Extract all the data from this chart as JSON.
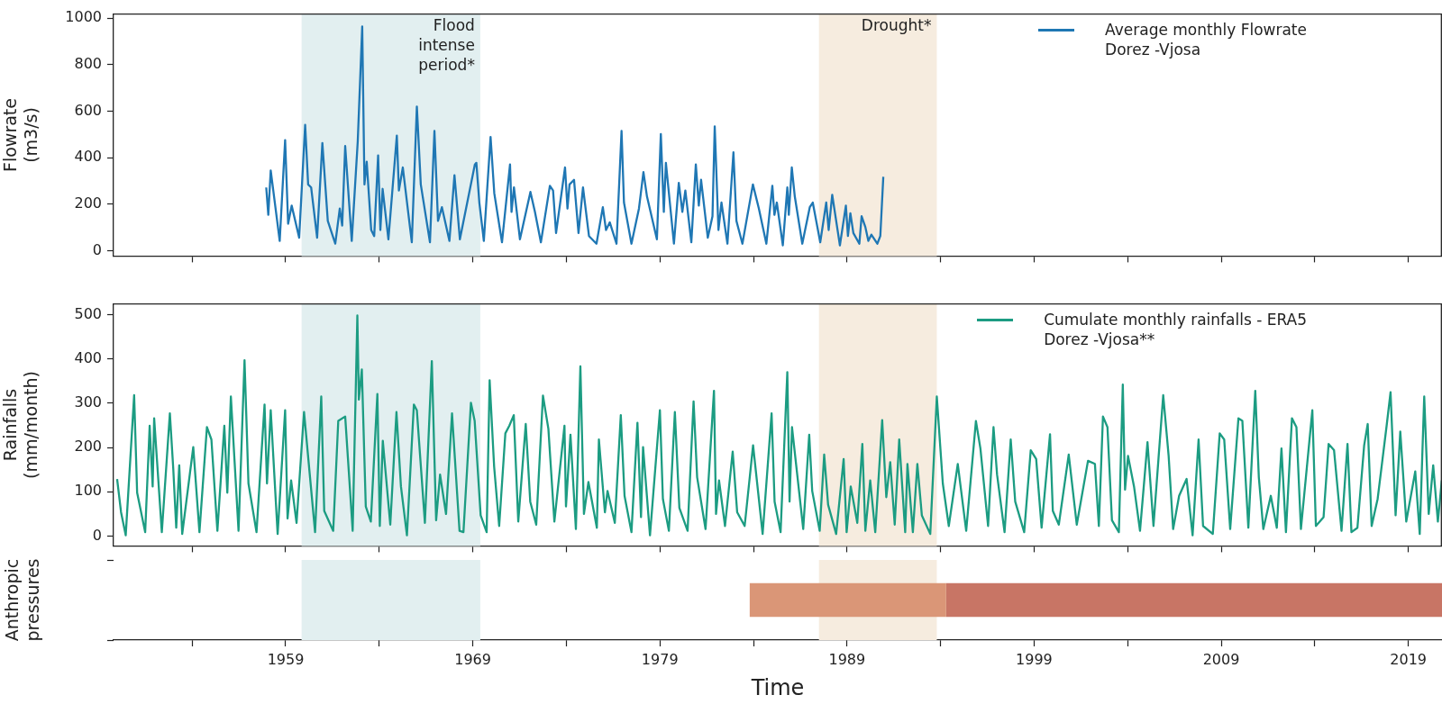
{
  "chart_data": [
    {
      "type": "line",
      "ylabel": "Flowrate\n(m3/s)",
      "legend": "top right",
      "grid": false,
      "tick_labels": "y",
      "xlim": [
        1949.8,
        2020.8
      ],
      "xticks": [
        {
          "value": 1954,
          "label": null
        },
        1959,
        {
          "value": 1964,
          "label": null
        },
        1969,
        {
          "value": 1974,
          "label": null
        },
        1979,
        {
          "value": 1984,
          "label": null
        },
        1989,
        {
          "value": 1994,
          "label": null
        },
        1999,
        {
          "value": 2004,
          "label": null
        },
        2009,
        {
          "value": 2014,
          "label": null
        },
        2019
      ],
      "ylim": [
        -23,
        1018
      ],
      "yticks": [
        0,
        200,
        400,
        600,
        800,
        1000
      ],
      "bands": [
        {
          "axis": "x",
          "from": 1959.85,
          "to": 1969.4,
          "label": "Flood\nintense\nperiod*",
          "color": "#e2eff0"
        },
        {
          "axis": "x",
          "from": 1987.5,
          "to": 1993.8,
          "label": "Drought*",
          "color": "#f6ecdf"
        }
      ],
      "x": [
        1957.96,
        1958.07,
        1958.2,
        1958.68,
        1958.97,
        1959.13,
        1959.32,
        1959.72,
        1960.04,
        1960.2,
        1960.36,
        1960.68,
        1960.96,
        1961.25,
        1961.65,
        1961.89,
        1962.02,
        1962.18,
        1962.53,
        1962.85,
        1963.09,
        1963.21,
        1963.33,
        1963.57,
        1963.73,
        1963.94,
        1964.06,
        1964.18,
        1964.49,
        1964.94,
        1965.05,
        1965.26,
        1965.74,
        1966.01,
        1966.22,
        1966.71,
        1966.95,
        1967.14,
        1967.35,
        1967.75,
        1968.02,
        1968.31,
        1969.11,
        1969.19,
        1969.35,
        1969.59,
        1969.95,
        1970.15,
        1970.56,
        1970.99,
        1971.07,
        1971.2,
        1971.52,
        1972.08,
        1972.32,
        1972.64,
        1973.12,
        1973.29,
        1973.45,
        1973.93,
        1974.06,
        1974.17,
        1974.41,
        1974.65,
        1974.89,
        1975.21,
        1975.61,
        1975.95,
        1976.12,
        1976.32,
        1976.68,
        1976.95,
        1977.08,
        1977.48,
        1977.88,
        1978.12,
        1978.31,
        1978.84,
        1979.05,
        1979.21,
        1979.32,
        1979.75,
        1980.01,
        1980.2,
        1980.36,
        1980.68,
        1980.92,
        1981.08,
        1981.2,
        1981.56,
        1981.81,
        1981.93,
        1982.13,
        1982.29,
        1982.61,
        1982.93,
        1983.09,
        1983.41,
        1983.97,
        1984.29,
        1984.69,
        1985.01,
        1985.12,
        1985.25,
        1985.57,
        1985.81,
        1985.89,
        1986.05,
        1986.21,
        1986.61,
        1987.01,
        1987.17,
        1987.57,
        1987.89,
        1988.02,
        1988.21,
        1988.62,
        1988.94,
        1989.05,
        1989.18,
        1989.34,
        1989.66,
        1989.78,
        1989.98,
        1990.14,
        1990.3,
        1990.62,
        1990.78,
        1990.94
      ],
      "series": [
        {
          "name": "Average monthly Flowrate\nDorez -Vjosa",
          "color": "#1f77b4",
          "values": [
            272,
            154,
            345,
            42,
            476,
            116,
            194,
            56,
            541,
            285,
            272,
            56,
            463,
            128,
            30,
            181,
            108,
            450,
            42,
            469,
            965,
            285,
            383,
            89,
            63,
            410,
            89,
            266,
            49,
            495,
            259,
            358,
            36,
            620,
            285,
            36,
            515,
            128,
            187,
            42,
            325,
            49,
            371,
            378,
            207,
            42,
            489,
            246,
            36,
            371,
            167,
            272,
            49,
            253,
            167,
            36,
            279,
            259,
            76,
            358,
            181,
            285,
            305,
            76,
            272,
            63,
            30,
            187,
            89,
            122,
            30,
            515,
            207,
            30,
            181,
            338,
            233,
            49,
            502,
            167,
            378,
            30,
            292,
            167,
            259,
            36,
            371,
            194,
            305,
            56,
            148,
            535,
            89,
            207,
            30,
            423,
            128,
            30,
            285,
            181,
            30,
            279,
            154,
            207,
            23,
            272,
            154,
            358,
            233,
            30,
            187,
            207,
            36,
            207,
            89,
            240,
            23,
            194,
            63,
            161,
            76,
            30,
            148,
            102,
            42,
            69,
            30,
            63,
            318
          ]
        }
      ]
    },
    {
      "type": "line",
      "ylabel": "Rainfalls\n(mm/month)",
      "legend": "top right",
      "grid": false,
      "tick_labels": "y",
      "xlim": [
        1949.8,
        2020.8
      ],
      "xticks": [
        {
          "value": 1954,
          "label": null
        },
        1959,
        {
          "value": 1964,
          "label": null
        },
        1969,
        {
          "value": 1974,
          "label": null
        },
        1979,
        {
          "value": 1984,
          "label": null
        },
        1989,
        {
          "value": 1994,
          "label": null
        },
        1999,
        {
          "value": 2004,
          "label": null
        },
        2009,
        {
          "value": 2014,
          "label": null
        },
        2019
      ],
      "ylim": [
        -22,
        524
      ],
      "yticks": [
        0,
        100,
        200,
        300,
        400,
        500
      ],
      "bands": [
        {
          "axis": "x",
          "from": 1959.85,
          "to": 1969.4,
          "color": "#e2eff0"
        },
        {
          "axis": "x",
          "from": 1987.5,
          "to": 1993.8,
          "color": "#f6ecdf"
        }
      ],
      "x": [
        1949.99,
        1950.2,
        1950.45,
        1950.9,
        1951.06,
        1951.49,
        1951.73,
        1951.89,
        1951.97,
        1952.38,
        1952.81,
        1952.99,
        1953.15,
        1953.31,
        1953.47,
        1954.06,
        1954.39,
        1954.79,
        1955.03,
        1955.35,
        1955.72,
        1955.88,
        1956.07,
        1956.48,
        1956.8,
        1957.01,
        1957.44,
        1957.87,
        1958.0,
        1958.2,
        1958.57,
        1958.97,
        1959.1,
        1959.29,
        1959.58,
        1959.98,
        1960.57,
        1960.9,
        1961.06,
        1961.54,
        1961.81,
        1962.18,
        1962.58,
        1962.83,
        1962.91,
        1963.07,
        1963.28,
        1963.55,
        1963.9,
        1964.03,
        1964.19,
        1964.59,
        1964.92,
        1965.16,
        1965.48,
        1965.85,
        1966.01,
        1966.44,
        1966.81,
        1967.04,
        1967.25,
        1967.57,
        1967.89,
        1968.29,
        1968.5,
        1968.9,
        1969.1,
        1969.42,
        1969.74,
        1969.9,
        1970.14,
        1970.41,
        1970.74,
        1970.95,
        1971.19,
        1971.43,
        1971.83,
        1972.07,
        1972.39,
        1972.75,
        1973.04,
        1973.36,
        1973.9,
        1973.98,
        1974.22,
        1974.51,
        1974.75,
        1974.94,
        1975.18,
        1975.63,
        1975.74,
        1976.06,
        1976.2,
        1976.59,
        1976.91,
        1977.11,
        1977.48,
        1977.8,
        1977.99,
        1978.1,
        1978.47,
        1979.0,
        1979.16,
        1979.48,
        1979.8,
        1980.04,
        1980.48,
        1980.8,
        1980.99,
        1981.44,
        1981.89,
        1982.0,
        1982.16,
        1982.48,
        1982.89,
        1983.13,
        1983.53,
        1983.98,
        1984.49,
        1984.97,
        1985.13,
        1985.45,
        1985.81,
        1985.93,
        1986.06,
        1986.66,
        1986.98,
        1987.14,
        1987.54,
        1987.78,
        1987.99,
        1988.42,
        1988.82,
        1988.98,
        1989.2,
        1989.55,
        1989.82,
        1989.98,
        1990.24,
        1990.51,
        1990.88,
        1991.1,
        1991.31,
        1991.55,
        1991.79,
        1992.11,
        1992.23,
        1992.52,
        1992.76,
        1993.0,
        1993.45,
        1993.8,
        1994.12,
        1994.44,
        1994.92,
        1995.37,
        1995.89,
        1996.13,
        1996.54,
        1996.83,
        1997.02,
        1997.42,
        1997.75,
        1997.99,
        1998.47,
        1998.82,
        1999.11,
        1999.4,
        1999.85,
        2000.0,
        2000.32,
        2000.85,
        2001.28,
        2001.88,
        2002.25,
        2002.46,
        2002.68,
        2002.92,
        2003.16,
        2003.53,
        2003.74,
        2003.86,
        2004.02,
        2004.34,
        2004.66,
        2005.06,
        2005.38,
        2005.9,
        2006.19,
        2006.43,
        2006.75,
        2007.15,
        2007.47,
        2007.79,
        2008.03,
        2008.55,
        2008.92,
        2009.16,
        2009.48,
        2009.92,
        2010.13,
        2010.45,
        2010.82,
        2011.01,
        2011.25,
        2011.65,
        2011.97,
        2012.22,
        2012.46,
        2012.78,
        2013.02,
        2013.26,
        2013.87,
        2014.06,
        2014.47,
        2014.74,
        2015.03,
        2015.43,
        2015.75,
        2015.96,
        2016.28,
        2016.64,
        2016.83,
        2017.04,
        2017.36,
        2017.84,
        2018.05,
        2018.32,
        2018.57,
        2018.89,
        2019.37,
        2019.61,
        2019.85,
        2020.09,
        2020.33,
        2020.58,
        2020.79
      ],
      "series": [
        {
          "name": "Cumulate monthly rainfalls - ERA5\nDorez -Vjosa**",
          "color": "#1c9c82",
          "values": [
            129,
            54,
            2,
            318,
            98,
            9,
            249,
            112,
            266,
            9,
            277,
            153,
            19,
            160,
            5,
            201,
            9,
            246,
            218,
            12,
            249,
            98,
            315,
            12,
            397,
            119,
            9,
            297,
            119,
            284,
            5,
            284,
            40,
            126,
            30,
            280,
            9,
            315,
            57,
            12,
            260,
            270,
            12,
            498,
            308,
            376,
            67,
            33,
            321,
            23,
            215,
            26,
            280,
            112,
            2,
            297,
            284,
            30,
            395,
            36,
            139,
            50,
            277,
            12,
            9,
            301,
            260,
            47,
            9,
            352,
            157,
            23,
            232,
            249,
            273,
            33,
            253,
            78,
            26,
            317,
            242,
            33,
            249,
            67,
            229,
            16,
            383,
            50,
            122,
            19,
            218,
            54,
            102,
            30,
            273,
            91,
            9,
            256,
            43,
            201,
            2,
            284,
            84,
            12,
            280,
            64,
            12,
            304,
            133,
            16,
            328,
            50,
            126,
            23,
            191,
            54,
            23,
            205,
            5,
            277,
            78,
            9,
            370,
            78,
            246,
            16,
            229,
            102,
            12,
            184,
            71,
            5,
            174,
            9,
            112,
            30,
            208,
            12,
            126,
            9,
            262,
            88,
            167,
            26,
            218,
            9,
            163,
            9,
            163,
            47,
            5,
            315,
            119,
            23,
            163,
            12,
            260,
            198,
            23,
            246,
            139,
            9,
            218,
            78,
            9,
            194,
            174,
            19,
            230,
            57,
            26,
            184,
            26,
            170,
            163,
            23,
            270,
            246,
            36,
            9,
            342,
            105,
            181,
            112,
            12,
            212,
            23,
            318,
            181,
            16,
            91,
            129,
            2,
            218,
            23,
            5,
            232,
            218,
            16,
            266,
            260,
            19,
            328,
            133,
            16,
            91,
            19,
            198,
            9,
            266,
            246,
            16,
            284,
            23,
            43,
            208,
            194,
            12,
            208,
            9,
            19,
            205,
            253,
            23,
            84,
            249,
            325,
            47,
            236,
            33,
            146,
            5,
            315,
            50,
            160,
            33,
            126
          ]
        }
      ]
    },
    {
      "type": "bar",
      "orientation": "horizontal",
      "ylabel": "Anthropic\npressures",
      "xlabel": "Time",
      "grid": false,
      "tick_labels": "x",
      "xlim": [
        1949.8,
        2020.8
      ],
      "xticks": [
        {
          "value": 1954,
          "label": null
        },
        1959,
        {
          "value": 1964,
          "label": null
        },
        1969,
        {
          "value": 1974,
          "label": null
        },
        1979,
        {
          "value": 1984,
          "label": null
        },
        1989,
        {
          "value": 1994,
          "label": null
        },
        1999,
        {
          "value": 2004,
          "label": null
        },
        2009,
        {
          "value": 2014,
          "label": null
        },
        2019
      ],
      "categories": [
        null
      ],
      "bands": [
        {
          "axis": "x",
          "from": 1959.85,
          "to": 1969.4,
          "color": "#e2eff0"
        },
        {
          "axis": "x",
          "from": 1987.5,
          "to": 1993.8,
          "color": "#f6ecdf"
        }
      ],
      "series": [
        {
          "color": "#da9677",
          "values": [
            10.5
          ],
          "base": [
            1983.8
          ]
        },
        {
          "color": "#c87565",
          "values": [
            26.5
          ],
          "base": [
            1994.3
          ]
        }
      ]
    }
  ]
}
